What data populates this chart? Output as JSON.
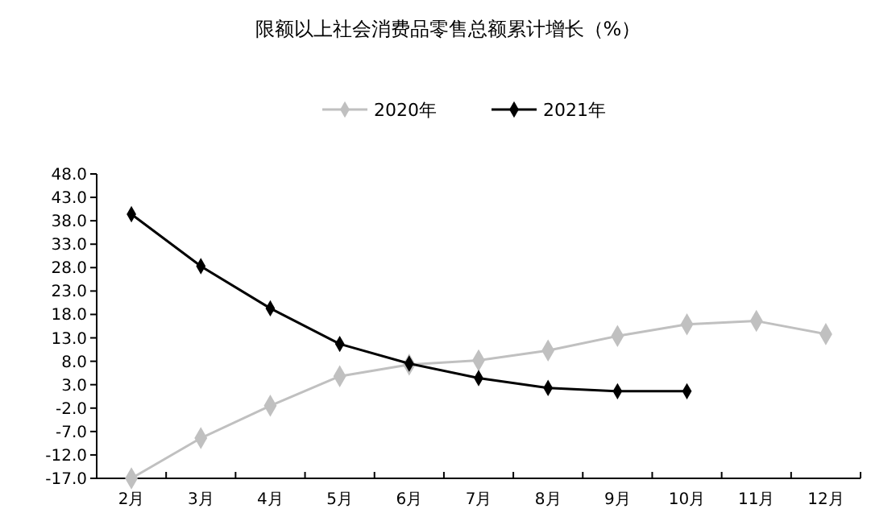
{
  "chart_data": {
    "type": "line",
    "title": "限额以上社会消费品零售总额累计增长（%）",
    "categories": [
      "2月",
      "3月",
      "4月",
      "5月",
      "6月",
      "7月",
      "8月",
      "9月",
      "10月",
      "11月",
      "12月"
    ],
    "series": [
      {
        "name": "2020年",
        "color": "#c0c0c0",
        "values": [
          -17.0,
          -8.4,
          -1.5,
          4.8,
          7.3,
          8.2,
          10.3,
          13.4,
          15.9,
          16.6,
          13.8
        ]
      },
      {
        "name": "2021年",
        "color": "#000000",
        "values": [
          39.4,
          28.3,
          19.3,
          11.7,
          7.5,
          4.4,
          2.3,
          1.6,
          1.6,
          null,
          null
        ]
      }
    ],
    "ylim": [
      -17,
      48
    ],
    "yticks": [
      {
        "value": -17,
        "label": "-17.0"
      },
      {
        "value": -12,
        "label": "-12.0"
      },
      {
        "value": -7,
        "label": "-7.0"
      },
      {
        "value": -2,
        "label": "-2.0"
      },
      {
        "value": 3,
        "label": "3.0"
      },
      {
        "value": 8,
        "label": "8.0"
      },
      {
        "value": 13,
        "label": "13.0"
      },
      {
        "value": 18,
        "label": "18.0"
      },
      {
        "value": 23,
        "label": "23.0"
      },
      {
        "value": 28,
        "label": "28.0"
      },
      {
        "value": 33,
        "label": "33.0"
      },
      {
        "value": 38,
        "label": "38.0"
      },
      {
        "value": 43,
        "label": "43.0"
      },
      {
        "value": 48,
        "label": "48.0"
      }
    ],
    "legend": "top",
    "marker": "diamond",
    "grid": false
  }
}
